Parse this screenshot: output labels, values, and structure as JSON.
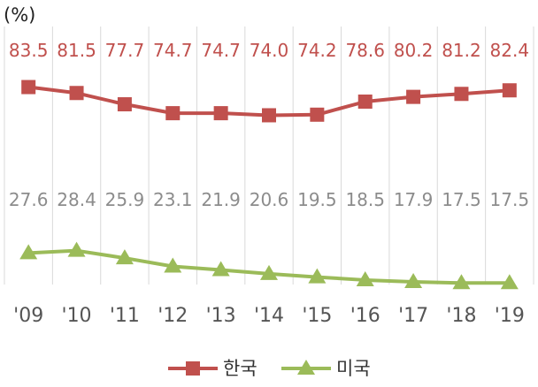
{
  "chart_data": {
    "type": "line",
    "unit_label": "(%)",
    "categories": [
      "'09",
      "'10",
      "'11",
      "'12",
      "'13",
      "'14",
      "'15",
      "'16",
      "'17",
      "'18",
      "'19"
    ],
    "series": [
      {
        "name": "한국",
        "color": "#c0504d",
        "marker": "square",
        "values": [
          83.5,
          81.5,
          77.7,
          74.7,
          74.7,
          74.0,
          74.2,
          78.6,
          80.2,
          81.2,
          82.4
        ],
        "labels": [
          "83.5",
          "81.5",
          "77.7",
          "74.7",
          "74.7",
          "74.0",
          "74.2",
          "78.6",
          "80.2",
          "81.2",
          "82.4"
        ]
      },
      {
        "name": "미국",
        "color": "#9bbb59",
        "marker": "triangle",
        "values": [
          27.6,
          28.4,
          25.9,
          23.1,
          21.9,
          20.6,
          19.5,
          18.5,
          17.9,
          17.5,
          17.5
        ],
        "labels": [
          "27.6",
          "28.4",
          "25.9",
          "23.1",
          "21.9",
          "20.6",
          "19.5",
          "18.5",
          "17.9",
          "17.5",
          "17.5"
        ]
      }
    ],
    "ylim": [
      0,
      100
    ],
    "grid": "vertical",
    "legend": "bottom"
  }
}
